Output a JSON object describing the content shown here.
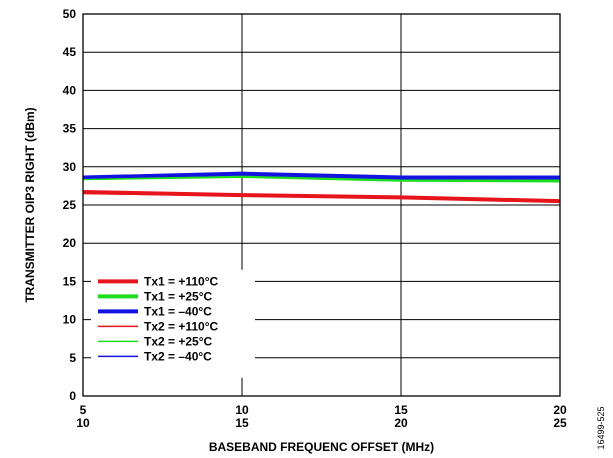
{
  "chart_data": {
    "type": "line",
    "xlabel": "BASEBAND FREQUENC OFFSET (MHz)",
    "ylabel": "TRANSMITTER OIP3 RIGHT (dBm)",
    "figure_id": "16499-525",
    "x_ticks_top": [
      "5",
      "10",
      "15",
      "20"
    ],
    "x_ticks_bottom": [
      "10",
      "15",
      "20",
      "25"
    ],
    "xlim": [
      5,
      20
    ],
    "ylim": [
      0,
      50
    ],
    "y_ticks": [
      0,
      5,
      10,
      15,
      20,
      25,
      30,
      35,
      40,
      45,
      50
    ],
    "grid": true,
    "legend_position": "bottom-left",
    "series": [
      {
        "name": "Tx1 = +110°C",
        "color": "#e8141c",
        "width": "thick",
        "x": [
          5,
          10,
          15,
          20
        ],
        "y": [
          26.7,
          26.3,
          26.0,
          25.5
        ]
      },
      {
        "name": "Tx1 = +25°C",
        "color": "#1fdc1f",
        "width": "thick",
        "x": [
          5,
          10,
          15,
          20
        ],
        "y": [
          28.5,
          28.8,
          28.3,
          28.2
        ]
      },
      {
        "name": "Tx1 = –40°C",
        "color": "#1414e0",
        "width": "thick",
        "x": [
          5,
          10,
          15,
          20
        ],
        "y": [
          28.6,
          29.1,
          28.6,
          28.6
        ]
      },
      {
        "name": "Tx2 = +110°C",
        "color": "#e8141c",
        "width": "thin",
        "x": [
          5,
          10,
          15,
          20
        ],
        "y": [
          26.5,
          26.2,
          25.9,
          25.4
        ]
      },
      {
        "name": "Tx2 = +25°C",
        "color": "#1fdc1f",
        "width": "thin",
        "x": [
          5,
          10,
          15,
          20
        ],
        "y": [
          28.4,
          28.7,
          28.2,
          28.1
        ]
      },
      {
        "name": "Tx2 = –40°C",
        "color": "#1414e0",
        "width": "thin",
        "x": [
          5,
          10,
          15,
          20
        ],
        "y": [
          28.5,
          29.0,
          28.5,
          28.5
        ]
      }
    ]
  }
}
